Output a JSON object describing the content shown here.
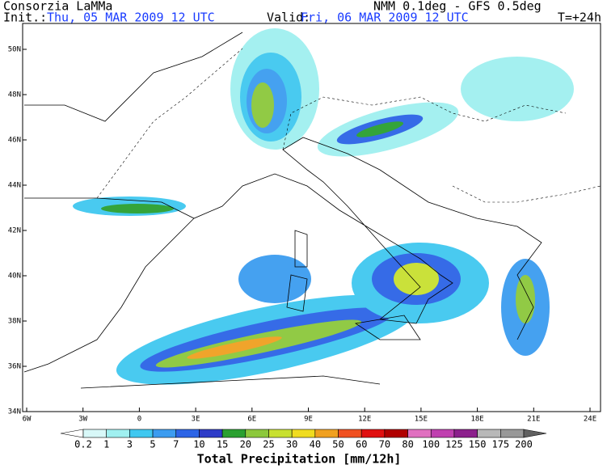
{
  "header": {
    "source": "Consorzia LaMMa",
    "model": "NMM 0.1deg - GFS 0.5deg",
    "init_label": "Init.:",
    "init_value": "Thu, 05 MAR 2009   12 UTC",
    "valid_label": "Valid:",
    "valid_value": "Fri, 06 MAR 2009   12 UTC",
    "lead_time": "T=+24h"
  },
  "map": {
    "lat_labels": [
      "50N",
      "48N",
      "46N",
      "44N",
      "42N",
      "40N",
      "38N",
      "36N",
      "34N"
    ],
    "lon_labels": [
      "6W",
      "3W",
      "0",
      "3E",
      "6E",
      "9E",
      "12E",
      "15E",
      "18E",
      "21E",
      "24E"
    ]
  },
  "colorbar": {
    "labels": [
      "0.2",
      "1",
      "3",
      "5",
      "7",
      "10",
      "15",
      "20",
      "25",
      "30",
      "40",
      "50",
      "60",
      "70",
      "80",
      "100",
      "125",
      "150",
      "175",
      "200"
    ],
    "colors": [
      "#ffffff",
      "#d8f8f8",
      "#a0f0f0",
      "#40c8f0",
      "#3c9cf0",
      "#2c64e6",
      "#2e3cc8",
      "#2aa030",
      "#8cc83c",
      "#c8e030",
      "#f0dc20",
      "#f0a020",
      "#f05020",
      "#e01010",
      "#b00000",
      "#e070c0",
      "#c040b0",
      "#8c208c",
      "#b8b8b8",
      "#989898",
      "#606060"
    ],
    "title": "Total Precipitation [mm/12h]"
  }
}
